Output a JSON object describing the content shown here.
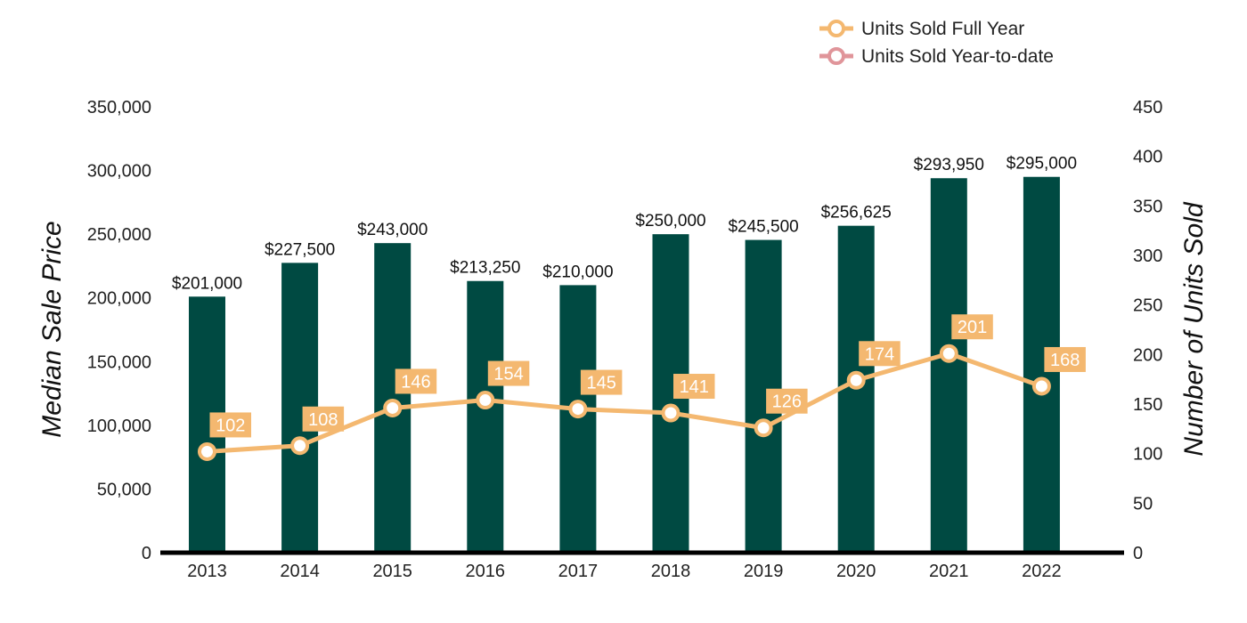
{
  "chart_data": {
    "type": "bar",
    "categories": [
      "2013",
      "2014",
      "2015",
      "2016",
      "2017",
      "2018",
      "2019",
      "2020",
      "2021",
      "2022"
    ],
    "bar_series": {
      "values": [
        201000,
        227500,
        243000,
        213250,
        210000,
        250000,
        245500,
        256625,
        293950,
        295000
      ],
      "labels": [
        "$201,000",
        "$227,500",
        "$243,000",
        "$213,250",
        "$210,000",
        "$250,000",
        "$245,500",
        "$256,625",
        "$293,950",
        "$295,000"
      ],
      "color": "#004A42"
    },
    "line_series": [
      {
        "name": "Units Sold Full Year",
        "values": [
          102,
          108,
          146,
          154,
          145,
          141,
          126,
          174,
          201,
          168
        ],
        "color": "#F4B870"
      },
      {
        "name": "Units Sold Year-to-date",
        "values": [],
        "color": "#E0959A"
      }
    ],
    "ylabel_left": "Median Sale Price",
    "ylabel_right": "Number of Units Sold",
    "ylim_left": [
      0,
      350000
    ],
    "yticks_left": [
      "0",
      "50,000",
      "100,000",
      "150,000",
      "200,000",
      "250,000",
      "300,000",
      "350,000"
    ],
    "ylim_right": [
      0,
      450
    ],
    "yticks_right": [
      "0",
      "50",
      "100",
      "150",
      "200",
      "250",
      "300",
      "350",
      "400",
      "450"
    ],
    "grid": false,
    "legend_position": "top-right"
  }
}
